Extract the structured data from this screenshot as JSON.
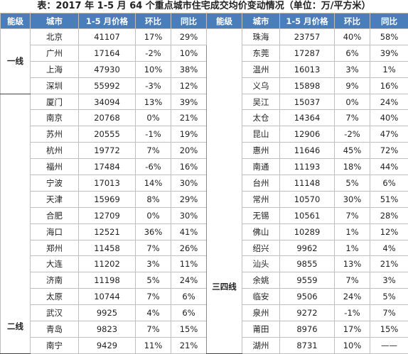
{
  "title": "表：2017 年 1-5 月 64 个重点城市住宅成交均价变动情况（单位：万/平方米）",
  "columns": [
    "能级",
    "城市",
    "1-5 月价格",
    "环比",
    "同比"
  ],
  "left": {
    "tiers": [
      {
        "label": "一线",
        "rows": 4
      },
      {
        "label": "二线",
        "rows": 16
      }
    ],
    "rows": [
      [
        "北京",
        41107,
        "17%",
        "29%"
      ],
      [
        "广州",
        17164,
        "-2%",
        "10%"
      ],
      [
        "上海",
        47930,
        "10%",
        "38%"
      ],
      [
        "深圳",
        55992,
        "-3%",
        "12%"
      ],
      [
        "厦门",
        34094,
        "13%",
        "39%"
      ],
      [
        "南京",
        20768,
        "0%",
        "21%"
      ],
      [
        "苏州",
        20555,
        "-1%",
        "19%"
      ],
      [
        "杭州",
        19772,
        "7%",
        "20%"
      ],
      [
        "福州",
        17484,
        "-6%",
        "16%"
      ],
      [
        "宁波",
        17013,
        "14%",
        "30%"
      ],
      [
        "天津",
        15969,
        "8%",
        "29%"
      ],
      [
        "合肥",
        12709,
        "0%",
        "30%"
      ],
      [
        "海口",
        12521,
        "36%",
        "41%"
      ],
      [
        "郑州",
        11458,
        "7%",
        "26%"
      ],
      [
        "大连",
        11202,
        "3%",
        "11%"
      ],
      [
        "济南",
        11198,
        "5%",
        "24%"
      ],
      [
        "太原",
        10744,
        "7%",
        "6%"
      ],
      [
        "武汉",
        9925,
        "4%",
        "6%"
      ],
      [
        "青岛",
        9823,
        "7%",
        "15%"
      ],
      [
        "南宁",
        9429,
        "11%",
        "21%"
      ]
    ]
  },
  "right": {
    "tiers": [
      {
        "label": "三四线",
        "rows": 20
      }
    ],
    "rows": [
      [
        "珠海",
        23757,
        "40%",
        "58%"
      ],
      [
        "东莞",
        17287,
        "6%",
        "39%"
      ],
      [
        "温州",
        16013,
        "3%",
        "1%"
      ],
      [
        "义乌",
        15898,
        "9%",
        "16%"
      ],
      [
        "吴江",
        15037,
        "0%",
        "24%"
      ],
      [
        "太仓",
        14364,
        "7%",
        "40%"
      ],
      [
        "昆山",
        12906,
        "-2%",
        "47%"
      ],
      [
        "惠州",
        11646,
        "45%",
        "72%"
      ],
      [
        "南通",
        11193,
        "18%",
        "44%"
      ],
      [
        "台州",
        11148,
        "5%",
        "6%"
      ],
      [
        "常州",
        10570,
        "30%",
        "51%"
      ],
      [
        "无锡",
        10561,
        "7%",
        "28%"
      ],
      [
        "佛山",
        10289,
        "1%",
        "12%"
      ],
      [
        "绍兴",
        9962,
        "1%",
        "4%"
      ],
      [
        "汕头",
        9855,
        "13%",
        "21%"
      ],
      [
        "余姚",
        9559,
        "7%",
        "3%"
      ],
      [
        "临安",
        9506,
        "24%",
        "5%"
      ],
      [
        "泉州",
        9272,
        "-1%",
        "7%"
      ],
      [
        "莆田",
        8976,
        "17%",
        "15%"
      ],
      [
        "湖州",
        8731,
        "10%",
        "——"
      ]
    ]
  }
}
